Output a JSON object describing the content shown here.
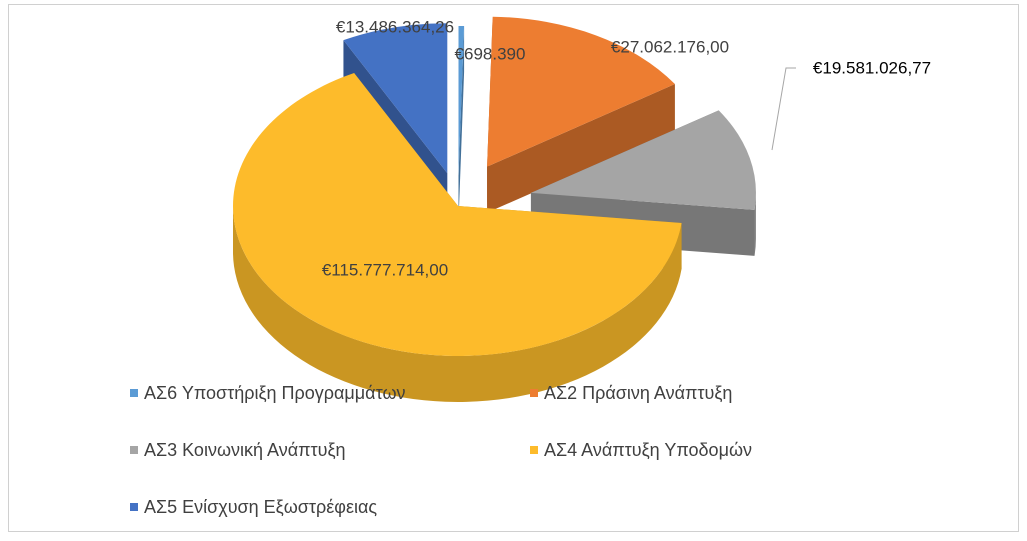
{
  "chart_data": {
    "type": "pie3d",
    "categories": [
      "ΑΣ6 Υποστήριξη Προγραμμάτων",
      "ΑΣ2 Πράσινη Ανάπτυξη",
      "ΑΣ3 Κοινωνική Ανάπτυξη",
      "ΑΣ4 Ανάπτυξη Υποδομών",
      "ΑΣ5 Ενίσχυση Εξωστρέφειας"
    ],
    "values": [
      698390,
      27062176.0,
      19581026.77,
      115777714.0,
      13486364.26
    ],
    "value_labels": [
      "€698.390",
      "€27.062.176,00",
      "€19.581.026,77",
      "€115.777.714,00",
      "€13.486.364,26"
    ],
    "colors": [
      "#5b9bd5",
      "#ed7d31",
      "#a5a5a5",
      "#fdbb2b",
      "#4472c4"
    ],
    "legend": "bottom"
  }
}
